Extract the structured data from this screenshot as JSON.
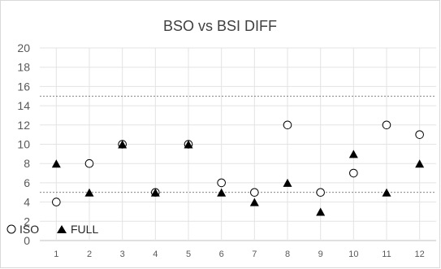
{
  "chart_data": {
    "type": "scatter",
    "title": "BSO vs BSI DIFF",
    "xlabel": "",
    "ylabel": "",
    "x": [
      1,
      2,
      3,
      4,
      5,
      6,
      7,
      8,
      9,
      10,
      11,
      12
    ],
    "xlim": [
      0.5,
      12.5
    ],
    "ylim": [
      0,
      20
    ],
    "yticks": [
      0,
      2,
      4,
      6,
      8,
      10,
      12,
      14,
      16,
      18,
      20
    ],
    "grid": true,
    "reference_lines": [
      5,
      15
    ],
    "legend": "bottom-left",
    "series": [
      {
        "name": "ISO",
        "marker": "open-circle",
        "values": [
          4,
          8,
          10,
          5,
          10,
          6,
          5,
          12,
          5,
          7,
          12,
          11
        ]
      },
      {
        "name": "FULL",
        "marker": "filled-triangle",
        "values": [
          8,
          5,
          10,
          5,
          10,
          5,
          4,
          6,
          3,
          9,
          5,
          8
        ]
      }
    ],
    "colors": {
      "marker": "#000000",
      "grid": "#e3e3e3",
      "reference": "#595959",
      "axis_text": "#595959"
    }
  }
}
